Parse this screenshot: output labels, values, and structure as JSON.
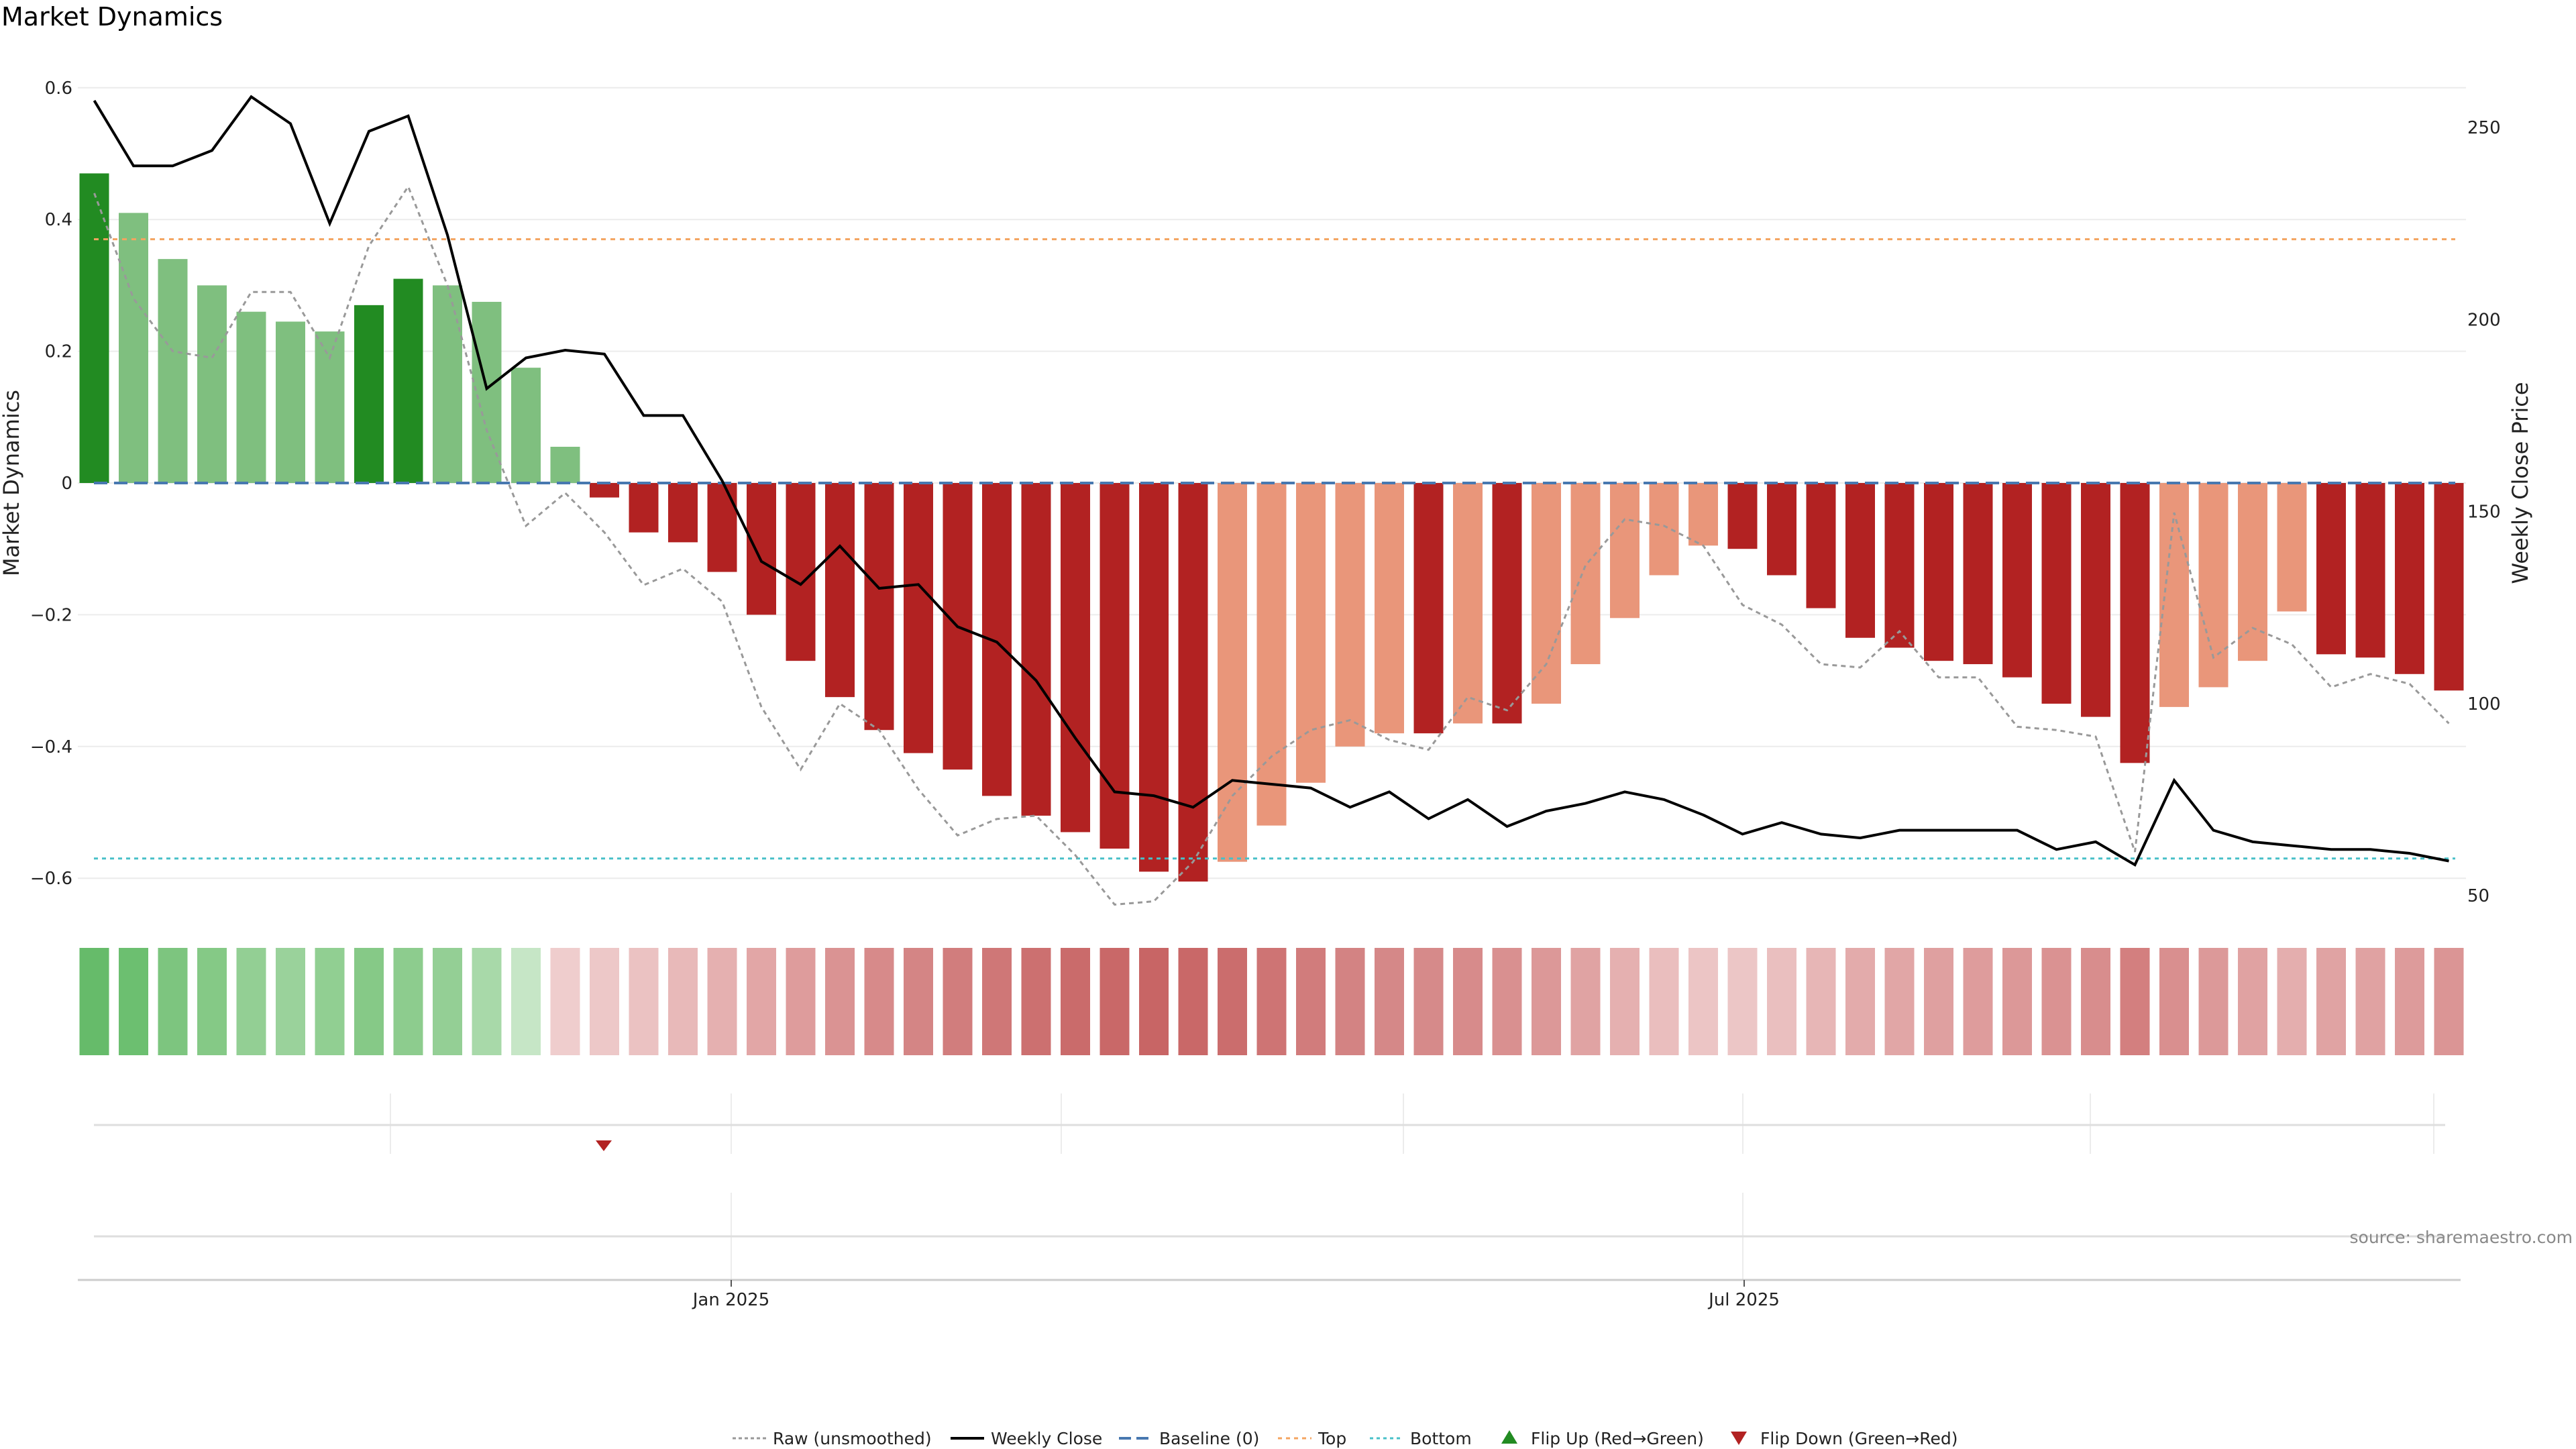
{
  "chart_data": {
    "type": "bar",
    "title": "Market Dynamics",
    "ylabel_left": "Market Dynamics",
    "ylabel_right": "Weekly Close Price",
    "ylim_left": [
      -0.65,
      0.62
    ],
    "ylim_right": [
      50,
      260
    ],
    "yticks_left": [
      "0.6",
      "0.4",
      "0.2",
      "0",
      "−0.2",
      "−0.4",
      "−0.6"
    ],
    "yticks_right": [
      "250",
      "200",
      "150",
      "100",
      "50"
    ],
    "x_tick_labels": [
      "Jan 2025",
      "Jul 2025"
    ],
    "top_threshold": 0.37,
    "bottom_threshold": -0.57,
    "baseline": 0,
    "values": [
      0.47,
      0.41,
      0.34,
      0.3,
      0.26,
      0.245,
      0.23,
      0.27,
      0.31,
      0.3,
      0.275,
      0.175,
      0.055,
      -0.022,
      -0.075,
      -0.09,
      -0.135,
      -0.2,
      -0.27,
      -0.325,
      -0.375,
      -0.41,
      -0.435,
      -0.475,
      -0.505,
      -0.53,
      -0.555,
      -0.59,
      -0.605,
      -0.575,
      -0.52,
      -0.455,
      -0.4,
      -0.38,
      -0.38,
      -0.365,
      -0.365,
      -0.335,
      -0.275,
      -0.205,
      -0.14,
      -0.095,
      -0.1,
      -0.14,
      -0.19,
      -0.235,
      -0.25,
      -0.27,
      -0.275,
      -0.295,
      -0.335,
      -0.355,
      -0.425,
      -0.34,
      -0.31,
      -0.27,
      -0.195,
      -0.26,
      -0.265,
      -0.29,
      -0.315
    ],
    "raw": [
      0.44,
      0.28,
      0.2,
      0.19,
      0.29,
      0.29,
      0.19,
      0.36,
      0.45,
      0.3,
      0.08,
      -0.065,
      -0.015,
      -0.075,
      -0.155,
      -0.13,
      -0.18,
      -0.34,
      -0.435,
      -0.335,
      -0.375,
      -0.465,
      -0.535,
      -0.51,
      -0.505,
      -0.565,
      -0.64,
      -0.635,
      -0.575,
      -0.475,
      -0.415,
      -0.375,
      -0.36,
      -0.39,
      -0.405,
      -0.325,
      -0.345,
      -0.275,
      -0.125,
      -0.055,
      -0.065,
      -0.095,
      -0.185,
      -0.215,
      -0.275,
      -0.28,
      -0.225,
      -0.295,
      -0.295,
      -0.37,
      -0.375,
      -0.385,
      -0.56,
      -0.045,
      -0.265,
      -0.22,
      -0.245,
      -0.31,
      -0.29,
      -0.305,
      -0.365
    ],
    "weekly_close": [
      257,
      240,
      240,
      244,
      258,
      251,
      225,
      249,
      253,
      222,
      182,
      190,
      192,
      191,
      175,
      175,
      158,
      137,
      131,
      141,
      130,
      131,
      120,
      116,
      106,
      91,
      77,
      76,
      73,
      80,
      79,
      78,
      73,
      77,
      70,
      75,
      68,
      72,
      74,
      77,
      75,
      71,
      66,
      69,
      66,
      65,
      67,
      67,
      67,
      67,
      62,
      64,
      58,
      80,
      67,
      64,
      63,
      62,
      62,
      61,
      59
    ],
    "color_strip": [
      "#66bb6a",
      "#6cbf70",
      "#7dc57f",
      "#85c986",
      "#93cf94",
      "#9ad29b",
      "#91cf92",
      "#86c987",
      "#8dcc8e",
      "#94cf95",
      "#a8d9a9",
      "#c6e6c6",
      "#efcdcd",
      "#edc8c8",
      "#ebc2c2",
      "#e8b9b9",
      "#e5b0b0",
      "#e2a6a6",
      "#de9c9c",
      "#da9393",
      "#d78a8a",
      "#d48585",
      "#d17d7d",
      "#cf7777",
      "#cc7070",
      "#ca6b6b",
      "#c96868",
      "#c86565",
      "#c96868",
      "#cb6d6d",
      "#ce7474",
      "#d17c7c",
      "#d38383",
      "#d58888",
      "#d68a8a",
      "#d78b8b",
      "#d99090",
      "#dc9898",
      "#e0a3a3",
      "#e5b0b0",
      "#eabebe",
      "#ecc5c5",
      "#ecc6c6",
      "#eabfbf",
      "#e7b6b6",
      "#e3abab",
      "#e1a6a6",
      "#dfa0a0",
      "#de9c9c",
      "#dc9898",
      "#da9292",
      "#d88d8d",
      "#d37f7f",
      "#d98f8f",
      "#dc9999",
      "#e0a2a2",
      "#e4aeae",
      "#e0a3a3",
      "#e0a2a2",
      "#dd9b9b",
      "#db9595"
    ],
    "flip_down_index": 13,
    "legend": [
      "Raw (unsmoothed)",
      "Weekly Close",
      "Baseline (0)",
      "Top",
      "Bottom",
      "Flip Up (Red→Green)",
      "Flip Down (Green→Red)"
    ],
    "source": "source: sharemaestro.com",
    "colors": {
      "strong_green": "#228b22",
      "light_green": "#7fbf7f",
      "strong_red": "#b22222",
      "light_red": "#e9967a",
      "baseline": "#4878b0",
      "top": "#f4a460",
      "bottom": "#48c0c8",
      "close": "#000000",
      "raw": "#999999"
    }
  }
}
